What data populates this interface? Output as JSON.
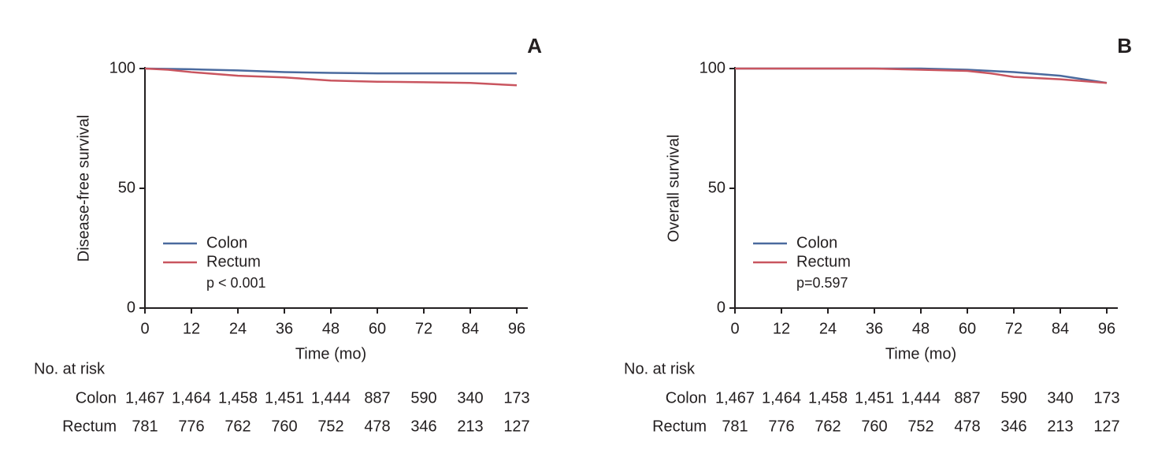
{
  "chart_data": [
    {
      "type": "line",
      "panel": "A",
      "ylabel": "Disease-free survival",
      "xlabel": "Time (mo)",
      "xlim": [
        0,
        96
      ],
      "ylim": [
        0,
        100
      ],
      "xticks": [
        0,
        12,
        24,
        36,
        48,
        60,
        72,
        84,
        96
      ],
      "yticks": [
        0,
        50,
        100
      ],
      "series": [
        {
          "name": "Colon",
          "color": "#4a6a9e",
          "x": [
            0,
            12,
            24,
            36,
            48,
            60,
            72,
            84,
            96
          ],
          "values": [
            100,
            99.7,
            99.2,
            98.5,
            98.2,
            98,
            98,
            98,
            98
          ]
        },
        {
          "name": "Rectum",
          "color": "#c9555f",
          "x": [
            0,
            6,
            12,
            24,
            36,
            48,
            60,
            72,
            84,
            96
          ],
          "values": [
            100,
            99.5,
            98.5,
            97,
            96.3,
            95,
            94.5,
            94.3,
            94,
            93
          ]
        }
      ],
      "annotation": "p < 0.001",
      "risk_table": {
        "title": "No. at risk",
        "rows": [
          {
            "name": "Colon",
            "values": [
              1467,
              1464,
              1458,
              1451,
              1444,
              887,
              590,
              340,
              173
            ],
            "value_labels": [
              "1,467",
              "1,464",
              "1,458",
              "1,451",
              "1,444",
              "887",
              "590",
              "340",
              "173"
            ]
          },
          {
            "name": "Rectum",
            "values": [
              781,
              776,
              762,
              760,
              752,
              478,
              346,
              213,
              127
            ]
          }
        ]
      }
    },
    {
      "type": "line",
      "panel": "B",
      "ylabel": "Overall survival",
      "xlabel": "Time (mo)",
      "xlim": [
        0,
        96
      ],
      "ylim": [
        0,
        100
      ],
      "xticks": [
        0,
        12,
        24,
        36,
        48,
        60,
        72,
        84,
        96
      ],
      "yticks": [
        0,
        50,
        100
      ],
      "series": [
        {
          "name": "Colon",
          "color": "#4a6a9e",
          "x": [
            0,
            12,
            24,
            36,
            48,
            60,
            66,
            72,
            84,
            96
          ],
          "values": [
            100,
            100,
            100,
            100,
            100,
            99.5,
            99,
            98.5,
            97,
            94
          ]
        },
        {
          "name": "Rectum",
          "color": "#c9555f",
          "x": [
            0,
            12,
            24,
            36,
            48,
            60,
            66,
            72,
            84,
            96
          ],
          "values": [
            100,
            100,
            100,
            100,
            99.5,
            99,
            98,
            96.5,
            95.5,
            94
          ]
        }
      ],
      "annotation": "p=0.597",
      "risk_table": {
        "title": "No. at risk",
        "rows": [
          {
            "name": "Colon",
            "values": [
              1467,
              1464,
              1458,
              1451,
              1444,
              887,
              590,
              340,
              173
            ],
            "value_labels": [
              "1,467",
              "1,464",
              "1,458",
              "1,451",
              "1,444",
              "887",
              "590",
              "340",
              "173"
            ]
          },
          {
            "name": "Rectum",
            "values": [
              781,
              776,
              762,
              760,
              752,
              478,
              346,
              213,
              127
            ]
          }
        ]
      }
    }
  ]
}
